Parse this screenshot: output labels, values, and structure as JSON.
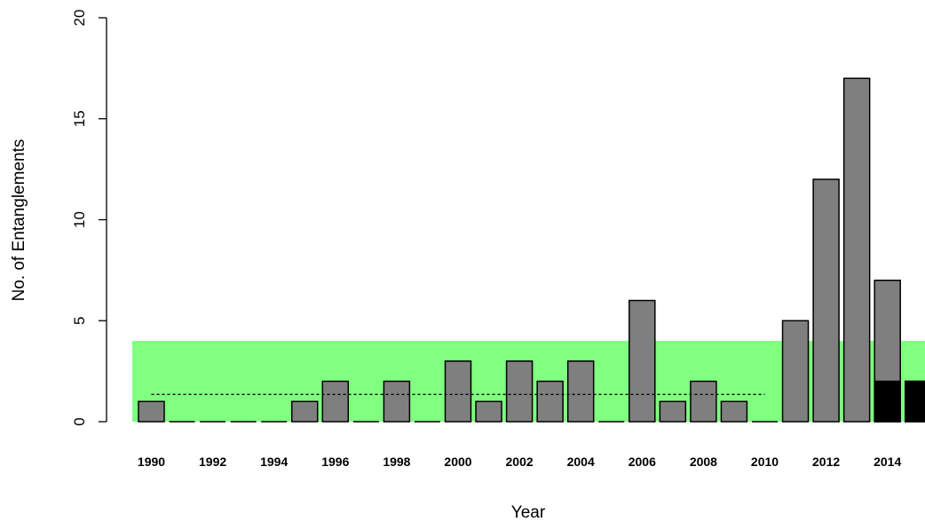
{
  "chart_data": {
    "type": "bar",
    "xlabel": "Year",
    "ylabel": "No. of Entanglements",
    "ylim": [
      0,
      20
    ],
    "yticks": [
      "0",
      "5",
      "10",
      "15",
      "20"
    ],
    "categories": [
      "1990",
      "1991",
      "1992",
      "1993",
      "1994",
      "1995",
      "1996",
      "1997",
      "1998",
      "1999",
      "2000",
      "2001",
      "2002",
      "2003",
      "2004",
      "2005",
      "2006",
      "2007",
      "2008",
      "2009",
      "2010",
      "2011",
      "2012",
      "2013",
      "2014",
      "2015"
    ],
    "xtick_labels": [
      "1990",
      "1992",
      "1994",
      "1996",
      "1998",
      "2000",
      "2002",
      "2004",
      "2006",
      "2008",
      "2010",
      "2012",
      "2014"
    ],
    "series": [
      {
        "values": [
          1,
          0,
          0,
          0,
          0,
          1,
          2,
          0,
          2,
          0,
          3,
          1,
          3,
          2,
          3,
          0,
          6,
          1,
          2,
          1,
          0,
          5,
          12,
          17,
          7,
          2
        ],
        "color": "#7f7f7f"
      },
      {
        "values": [
          0,
          0,
          0,
          0,
          0,
          0,
          0,
          0,
          0,
          0,
          0,
          0,
          0,
          0,
          0,
          0,
          0,
          0,
          0,
          0,
          0,
          0,
          0,
          0,
          2,
          2
        ],
        "color": "#000000"
      }
    ],
    "band": {
      "from": 0,
      "to": 4,
      "color": "#80ff80"
    },
    "reference_line": {
      "value": 1.35,
      "x_start": "1990",
      "x_end": "2010",
      "style": "dotted"
    },
    "grid": false,
    "legend": "none"
  }
}
